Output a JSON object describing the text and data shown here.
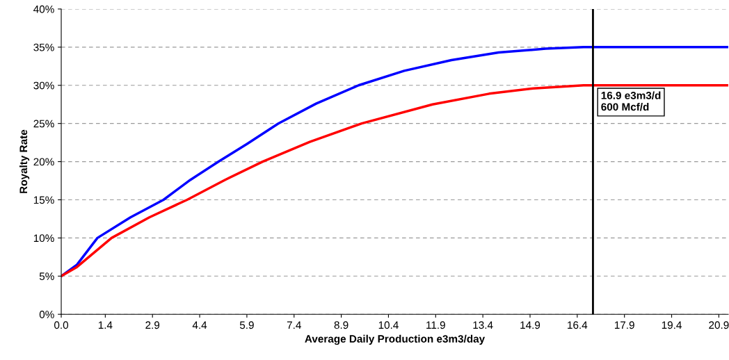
{
  "chart_data": {
    "type": "line",
    "xlabel": "Average Daily Production e3m3/day",
    "ylabel": "Royalty Rate",
    "xlim": [
      0,
      21.2
    ],
    "xticks": [
      {
        "value": 0,
        "label": "0.0"
      },
      1.4,
      2.9,
      4.4,
      5.9,
      7.4,
      8.9,
      10.4,
      11.9,
      13.4,
      14.9,
      16.4,
      17.9,
      19.4,
      20.9
    ],
    "ylim": [
      0,
      40
    ],
    "yticks": [
      {
        "value": 0,
        "label": "0%"
      },
      {
        "value": 5,
        "label": "5%"
      },
      {
        "value": 10,
        "label": "10%"
      },
      {
        "value": 15,
        "label": "15%"
      },
      {
        "value": 20,
        "label": "20%"
      },
      {
        "value": 25,
        "label": "25%"
      },
      {
        "value": 30,
        "label": "30%"
      },
      {
        "value": 35,
        "label": "35%"
      },
      {
        "value": 40,
        "label": "40%"
      }
    ],
    "grid": "y",
    "marker": "none",
    "line_style": "solid",
    "series": [
      {
        "color": "#0000ff",
        "x": [
          0,
          0.5,
          1.15,
          2.2,
          3.25,
          4.1,
          5.0,
          5.9,
          6.9,
          8.1,
          9.45,
          10.9,
          12.4,
          13.9,
          15.4,
          16.6,
          21.2
        ],
        "values": [
          5,
          6.5,
          10,
          12.7,
          15,
          17.6,
          20,
          22.3,
          25,
          27.6,
          30,
          31.9,
          33.3,
          34.3,
          34.8,
          35,
          35
        ]
      },
      {
        "color": "#ff0000",
        "x": [
          0,
          0.5,
          1.6,
          2.8,
          4.0,
          5.2,
          6.4,
          7.9,
          9.55,
          11.8,
          13.6,
          15.0,
          16.6,
          21.2
        ],
        "values": [
          5,
          6.2,
          10,
          12.7,
          15,
          17.6,
          20,
          22.6,
          25,
          27.5,
          28.9,
          29.6,
          30,
          30
        ]
      }
    ],
    "ref_lines": [
      {
        "axis": "x",
        "value": 16.9,
        "label": "16.9 e3m3/d\n600 Mcf/d",
        "color": "#000000"
      }
    ]
  }
}
